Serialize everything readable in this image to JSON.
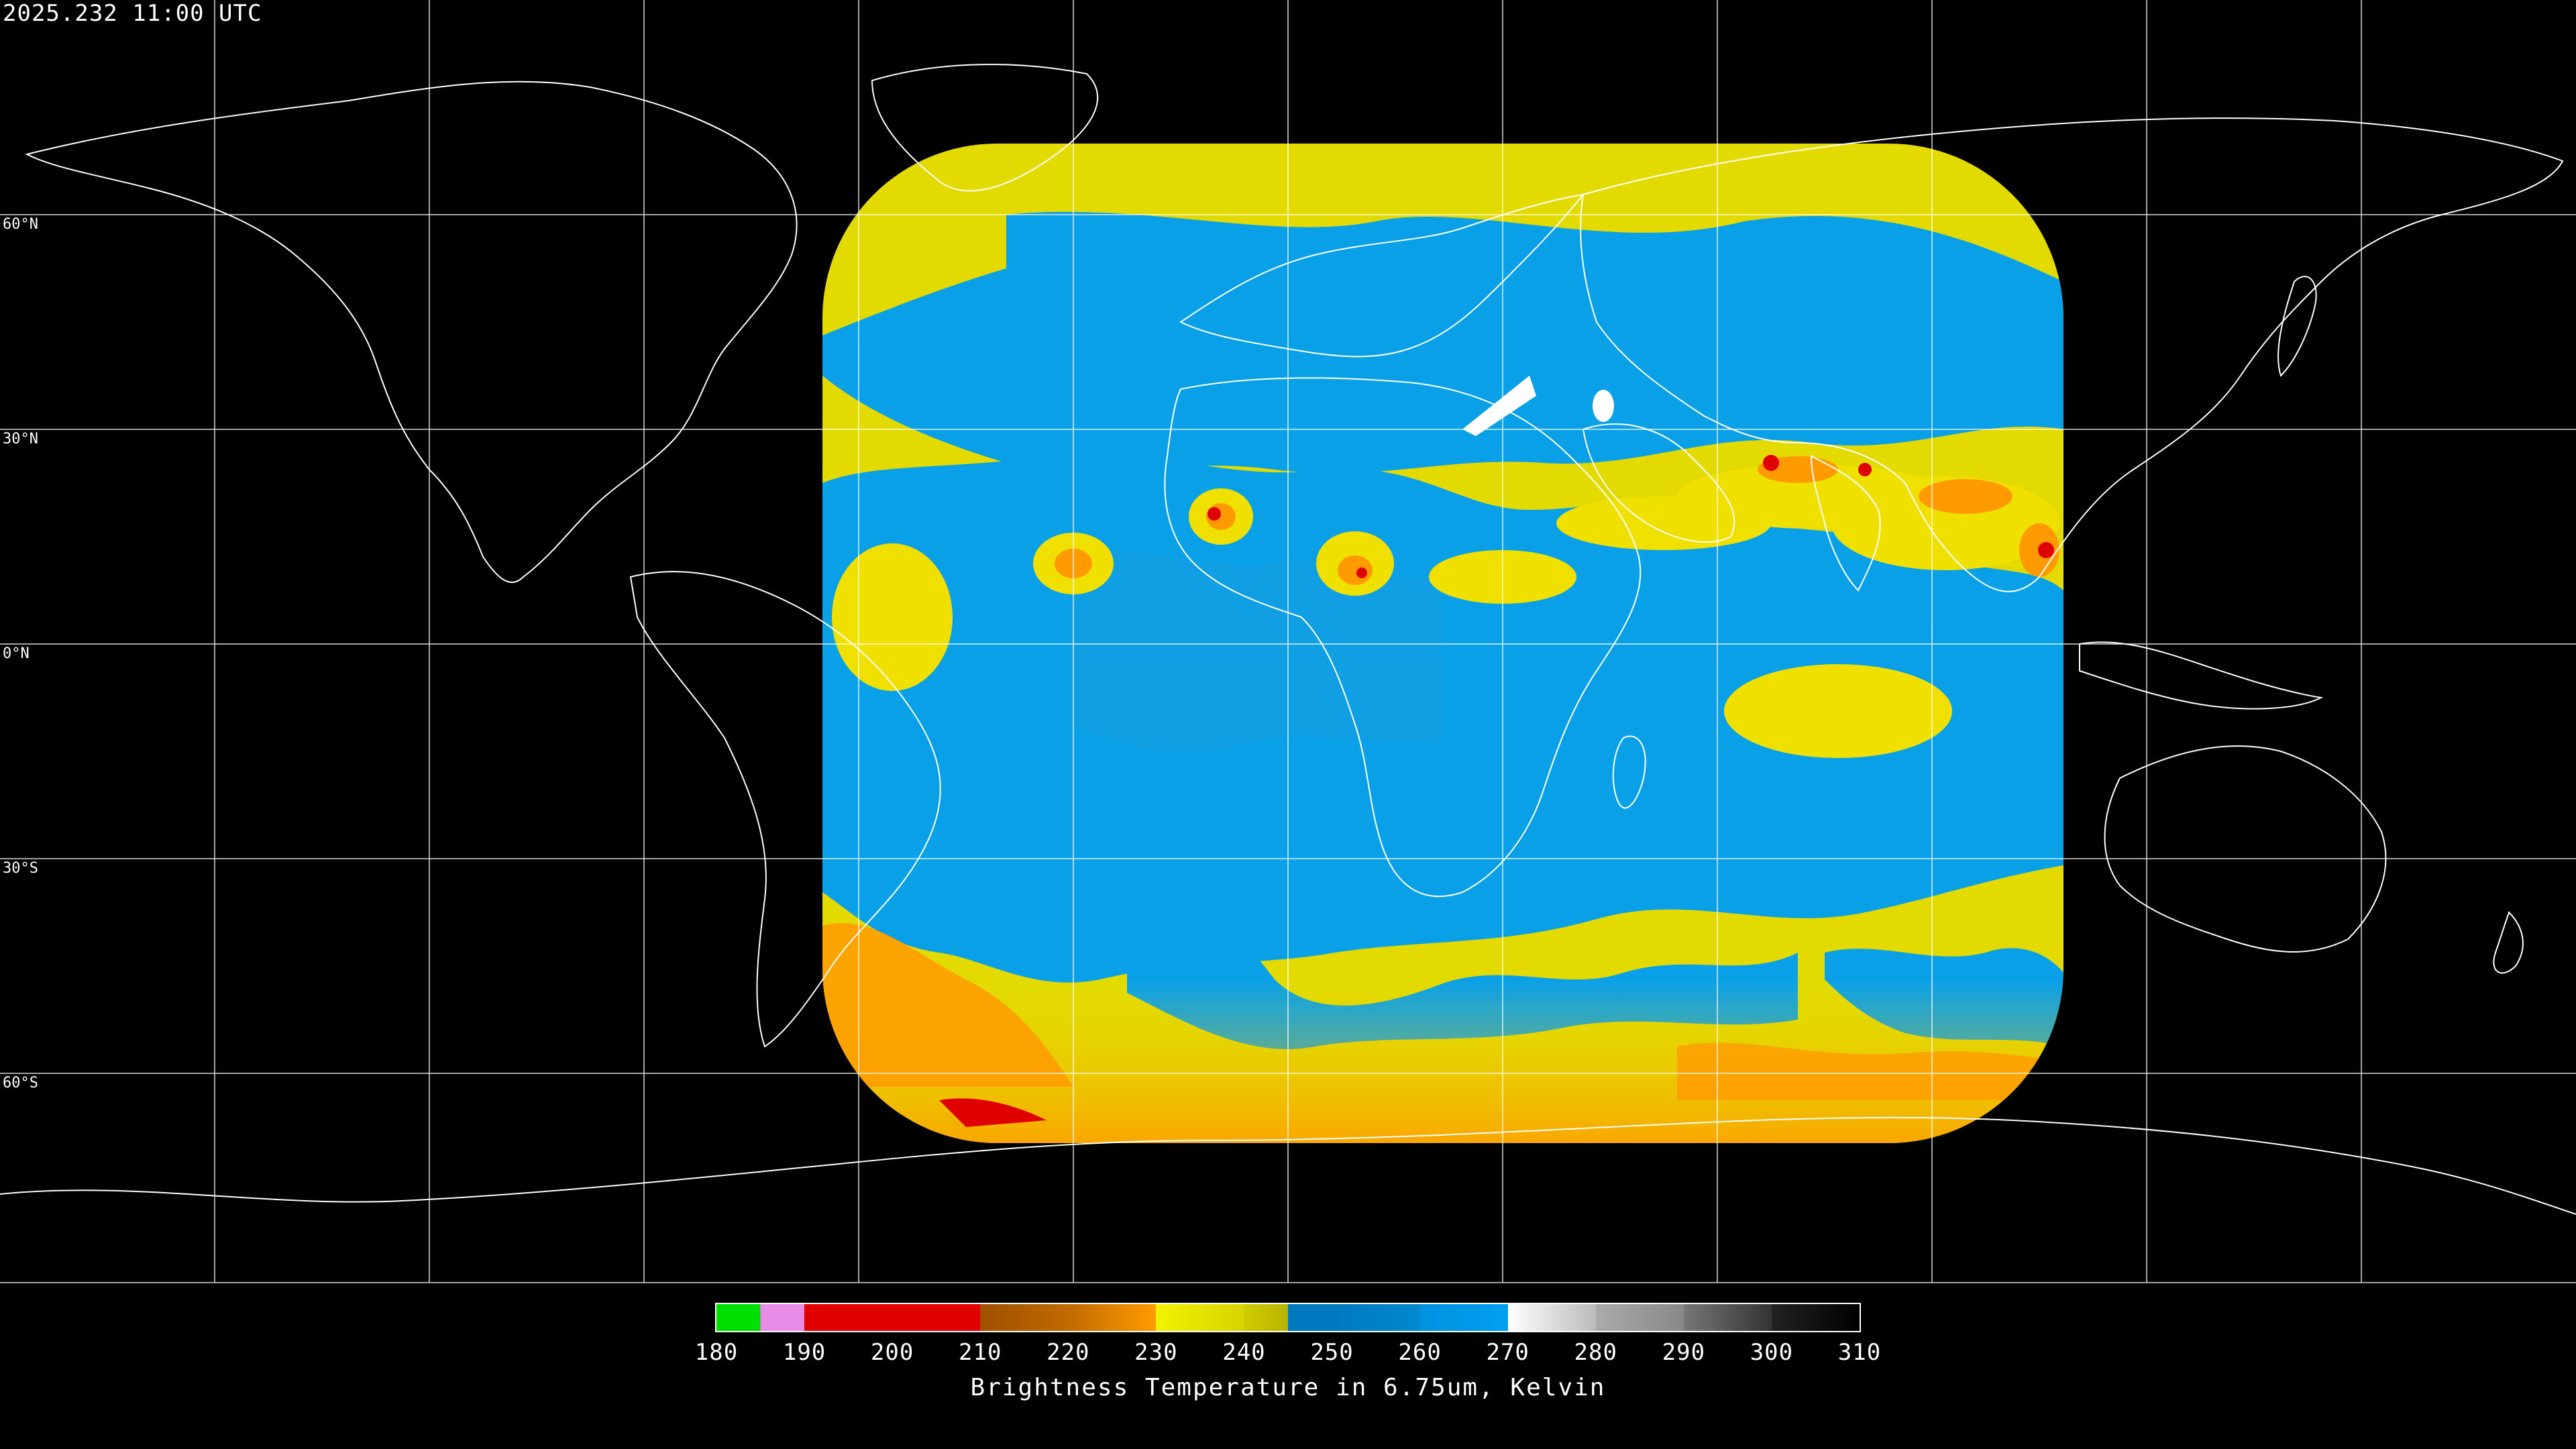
{
  "header": {
    "timestamp": "2025.232 11:00 UTC"
  },
  "map": {
    "product": "Water vapor brightness temperature",
    "latitude_labels": [
      "60°N",
      "30°N",
      "0°N",
      "30°S",
      "60°S"
    ],
    "graticule_step_degrees": 30,
    "projection": "equirectangular",
    "coastline_color": "#ffffff",
    "background_color": "#000000"
  },
  "legend": {
    "title": "Brightness Temperature in 6.75um, Kelvin",
    "ticks": [
      "180",
      "190",
      "200",
      "210",
      "220",
      "230",
      "240",
      "250",
      "260",
      "270",
      "280",
      "290",
      "300",
      "310"
    ],
    "min": 180,
    "max": 310,
    "colors": {
      "green": "#00e000",
      "pink": "#e88ce8",
      "red": "#e00000",
      "orange_dark": "#c06a00",
      "orange": "#ff9a00",
      "yellow": "#f2f200",
      "olive": "#b8b400",
      "blue_dark": "#0078c0",
      "blue": "#00a0f0",
      "white": "#ffffff",
      "gray": "#888888",
      "black": "#000000"
    }
  }
}
